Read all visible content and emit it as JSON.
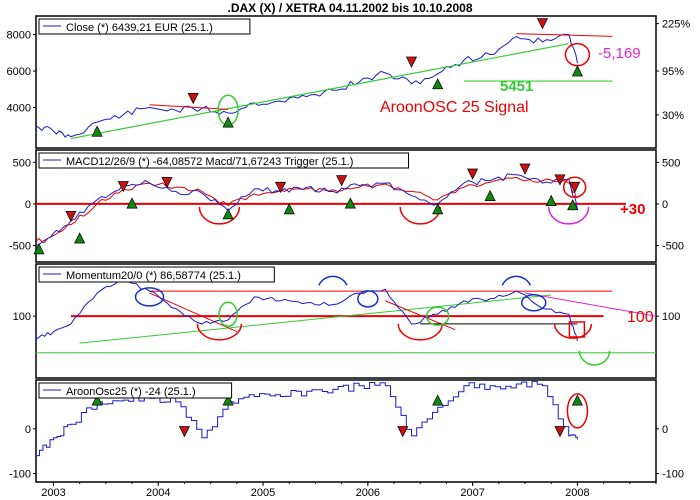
{
  "title": ".DAX (X) / XETRA 04.11.2002 bis 10.10.2008",
  "x_ticks": [
    "2003",
    "2004",
    "2005",
    "2006",
    "2007",
    "2008"
  ],
  "colors": {
    "price": "#1a1acc",
    "trigger": "#dd0000",
    "trend_green": "#33cc33",
    "red_line": "#ee0000",
    "magenta": "#dd22dd",
    "blue_ellipse": "#1133cc",
    "up_marker": "#118811",
    "down_marker": "#cc1111"
  },
  "chart_data": [
    {
      "type": "line",
      "legend": "Close (*) 6439,21 EUR (25.1.)",
      "y_ticks_left": [
        "8000",
        "6000",
        "4000"
      ],
      "y_ticks_right": [
        "225%",
        "95%",
        "30%"
      ],
      "annotations": {
        "change": "-5,169",
        "support": "5451",
        "signal": "AroonOSC 25 Signal"
      },
      "x": [
        "2002-11",
        "2003-01",
        "2003-03",
        "2003-06",
        "2003-09",
        "2003-12",
        "2004-03",
        "2004-06",
        "2004-09",
        "2004-12",
        "2005-03",
        "2005-06",
        "2005-09",
        "2005-12",
        "2006-03",
        "2006-06",
        "2006-09",
        "2006-12",
        "2007-03",
        "2007-06",
        "2007-09",
        "2007-12",
        "2008-01"
      ],
      "values": [
        3000,
        2700,
        2400,
        3200,
        3600,
        4000,
        3850,
        3950,
        3700,
        4250,
        4350,
        4600,
        4950,
        5400,
        5900,
        5300,
        5850,
        6600,
        6900,
        7900,
        7600,
        8000,
        6439
      ],
      "ylim": [
        2000,
        8800
      ]
    },
    {
      "type": "line",
      "legend": "MACD12/26/9 (*) -64,08572 Macd/71,67243 Trigger (25.1.)",
      "y_ticks_left": [
        "500",
        "0",
        "-500"
      ],
      "y_ticks_right": [
        "500",
        "0",
        "-500"
      ],
      "annotations": {
        "level": "+30"
      },
      "series": [
        {
          "values": [
            -500,
            -350,
            -200,
            50,
            230,
            250,
            150,
            130,
            -80,
            180,
            150,
            200,
            150,
            220,
            250,
            100,
            0,
            250,
            280,
            350,
            250,
            300,
            -64
          ]
        },
        {
          "values": [
            -450,
            -380,
            -250,
            0,
            180,
            250,
            200,
            150,
            -20,
            120,
            160,
            180,
            170,
            200,
            240,
            150,
            50,
            200,
            260,
            320,
            280,
            250,
            72
          ]
        }
      ],
      "ylim": [
        -650,
        600
      ]
    },
    {
      "type": "line",
      "legend": "Momentum20/0 (*) 86,58774 (25.1.)",
      "y_ticks_left": [
        "100"
      ],
      "y_ticks_right": [
        "100"
      ],
      "annotations": {
        "level": "100"
      },
      "values": [
        88,
        92,
        96,
        112,
        119,
        113,
        104,
        96,
        98,
        110,
        108,
        107,
        106,
        112,
        114,
        96,
        101,
        108,
        109,
        113,
        104,
        101,
        87
      ],
      "ylim": [
        70,
        125
      ]
    },
    {
      "type": "line",
      "legend": "AroonOsc25 (*) -24 (25.1.)",
      "y_ticks_left": [
        "0",
        "-100"
      ],
      "y_ticks_right": [
        "0",
        "-100"
      ],
      "values": [
        -60,
        -20,
        10,
        60,
        64,
        68,
        60,
        -20,
        60,
        72,
        72,
        84,
        88,
        96,
        96,
        -16,
        48,
        96,
        96,
        100,
        96,
        -16,
        -24
      ],
      "ylim": [
        -110,
        100
      ]
    }
  ]
}
